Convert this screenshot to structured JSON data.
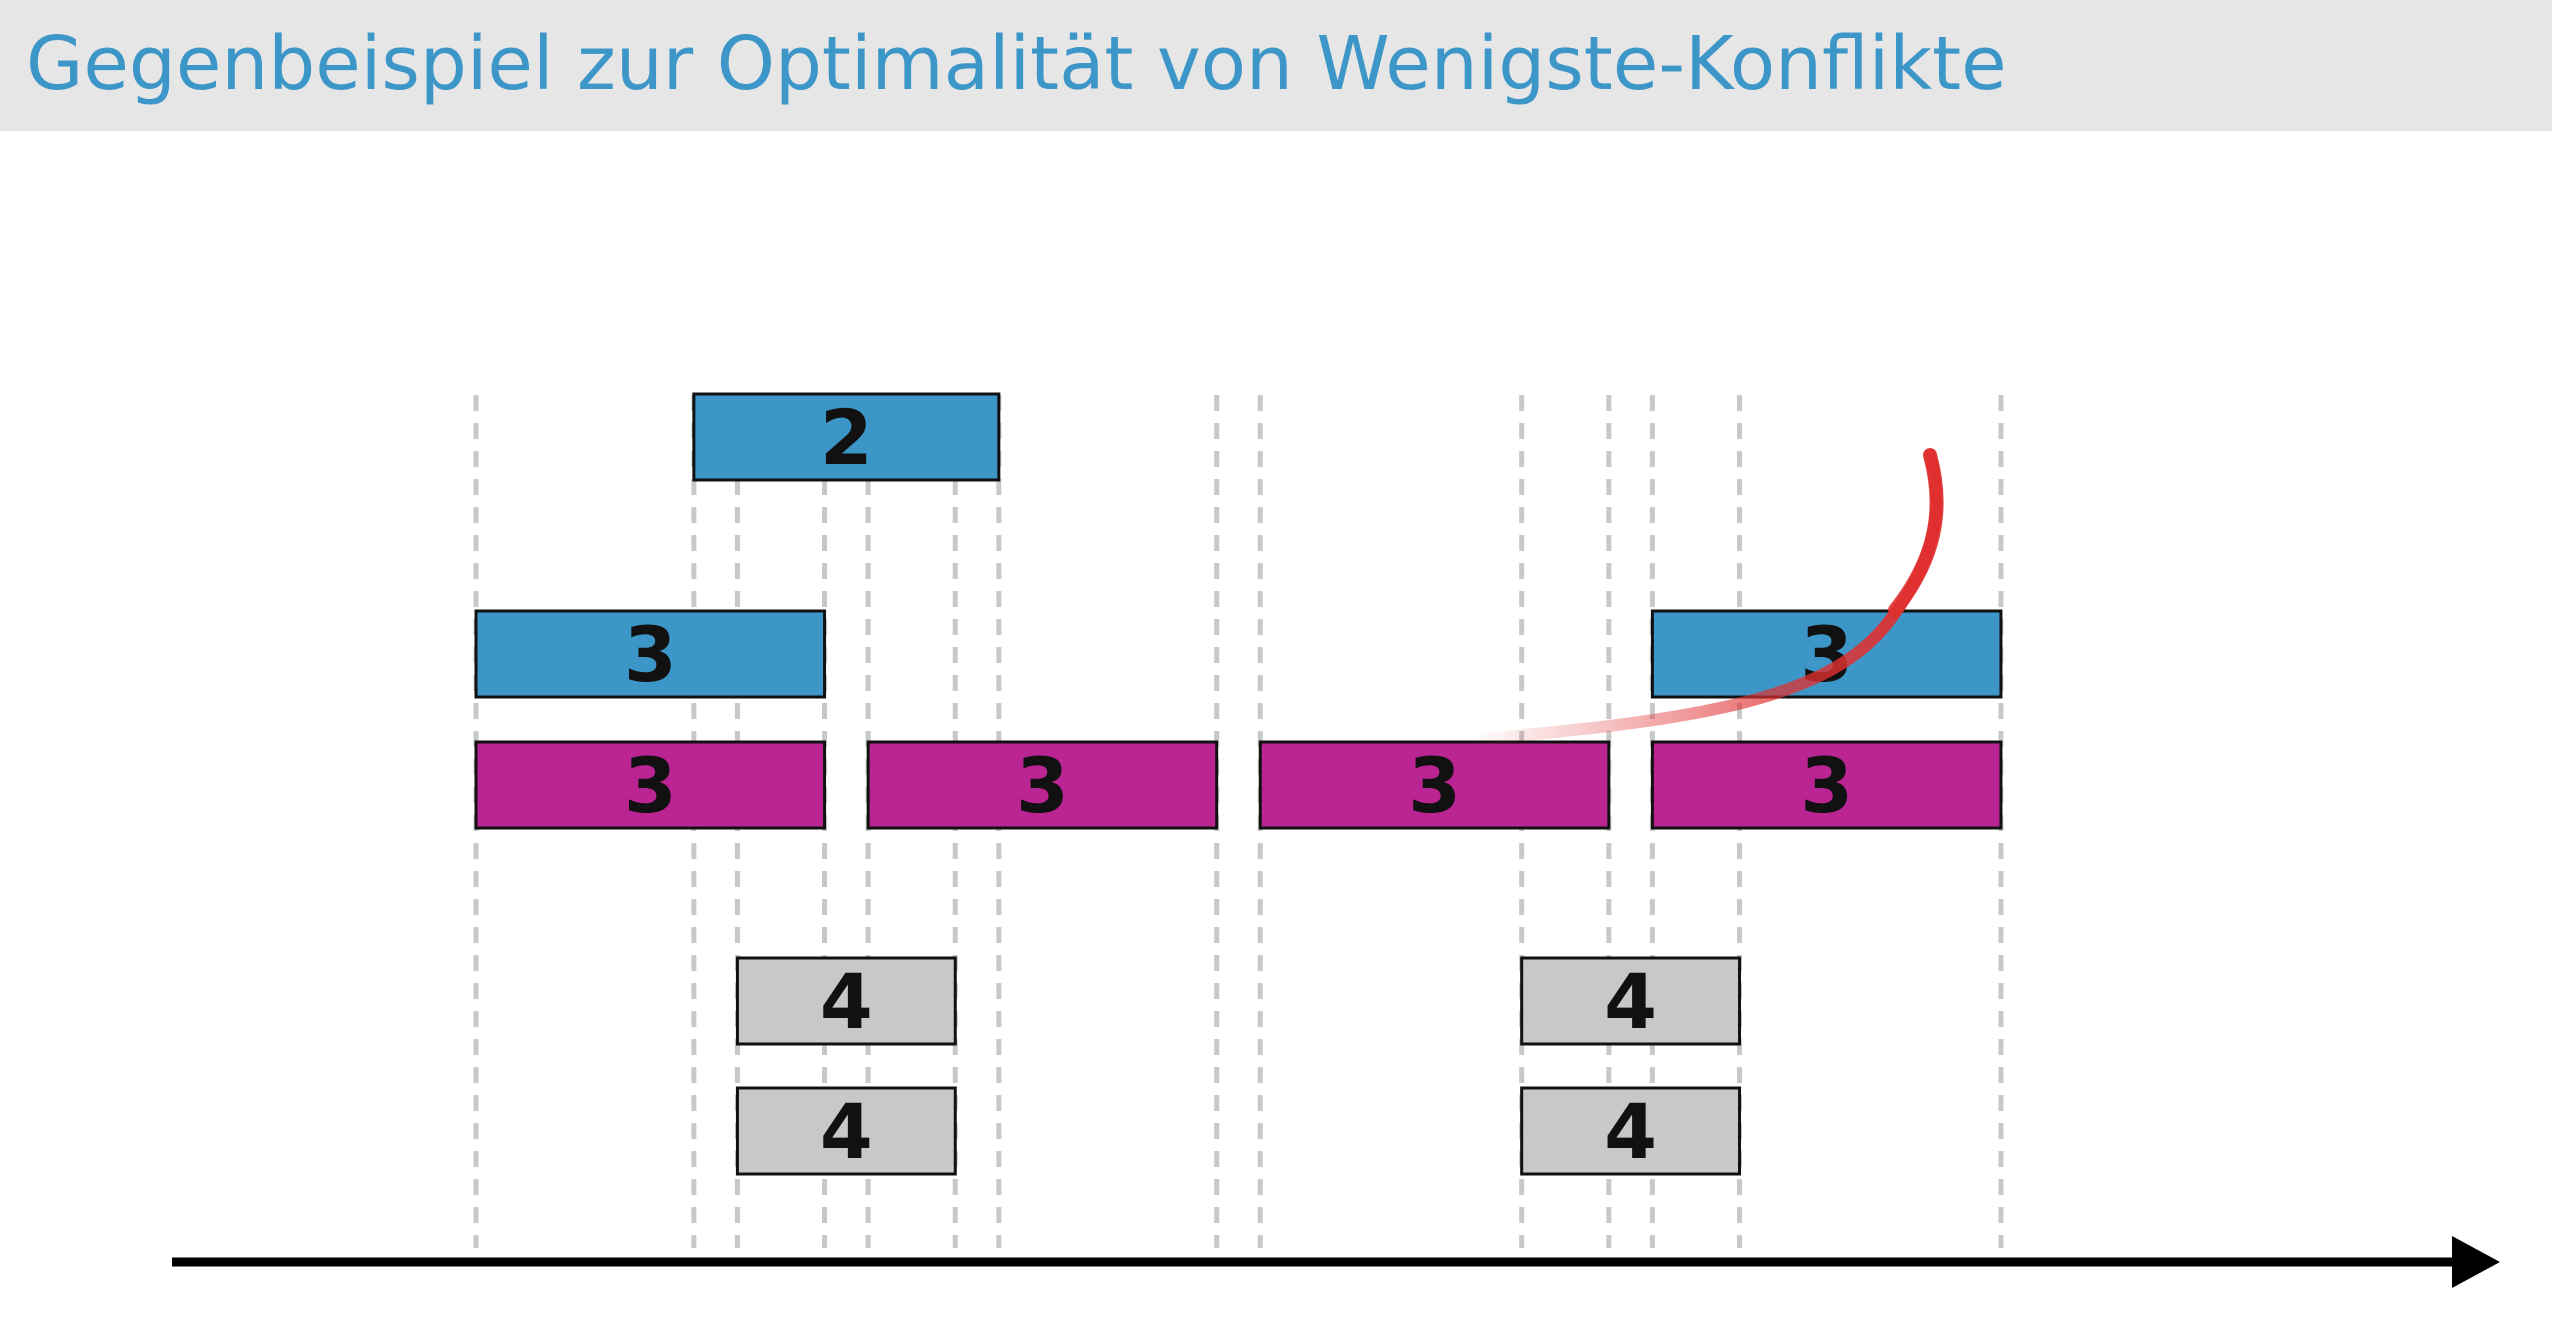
{
  "title": "Gegenbeispiel zur Optimalität von Wenigste-Konflikte",
  "colors": {
    "title_text": "#3d96c8",
    "title_bar": "#e6e6e6",
    "chosen_interval": "#3d96c8",
    "greedy_interval": "#bb2593",
    "other_interval": "#c8c8c8",
    "guide_line": "#c8c8c8",
    "axis": "#000000",
    "annotation_stroke": "#e03030"
  },
  "axis": {
    "direction": "right",
    "arrow": true,
    "labels": false
  },
  "intervals": [
    {
      "row": 0,
      "start": 5,
      "end": 12,
      "label": "2",
      "color": "chosen_interval"
    },
    {
      "row": 1,
      "start": 0,
      "end": 8,
      "label": "3",
      "color": "chosen_interval"
    },
    {
      "row": 1,
      "start": 27,
      "end": 35,
      "label": "3",
      "color": "chosen_interval"
    },
    {
      "row": 2,
      "start": 0,
      "end": 8,
      "label": "3",
      "color": "greedy_interval"
    },
    {
      "row": 2,
      "start": 9,
      "end": 17,
      "label": "3",
      "color": "greedy_interval"
    },
    {
      "row": 2,
      "start": 18,
      "end": 26,
      "label": "3",
      "color": "greedy_interval"
    },
    {
      "row": 2,
      "start": 27,
      "end": 35,
      "label": "3",
      "color": "greedy_interval"
    },
    {
      "row": 3,
      "start": 6,
      "end": 11,
      "label": "4",
      "color": "other_interval"
    },
    {
      "row": 3,
      "start": 24,
      "end": 29,
      "label": "4",
      "color": "other_interval"
    },
    {
      "row": 4,
      "start": 6,
      "end": 11,
      "label": "4",
      "color": "other_interval"
    },
    {
      "row": 4,
      "start": 24,
      "end": 29,
      "label": "4",
      "color": "other_interval"
    }
  ],
  "annotation": {
    "type": "hand-drawn-stroke",
    "color": "annotation_stroke"
  }
}
